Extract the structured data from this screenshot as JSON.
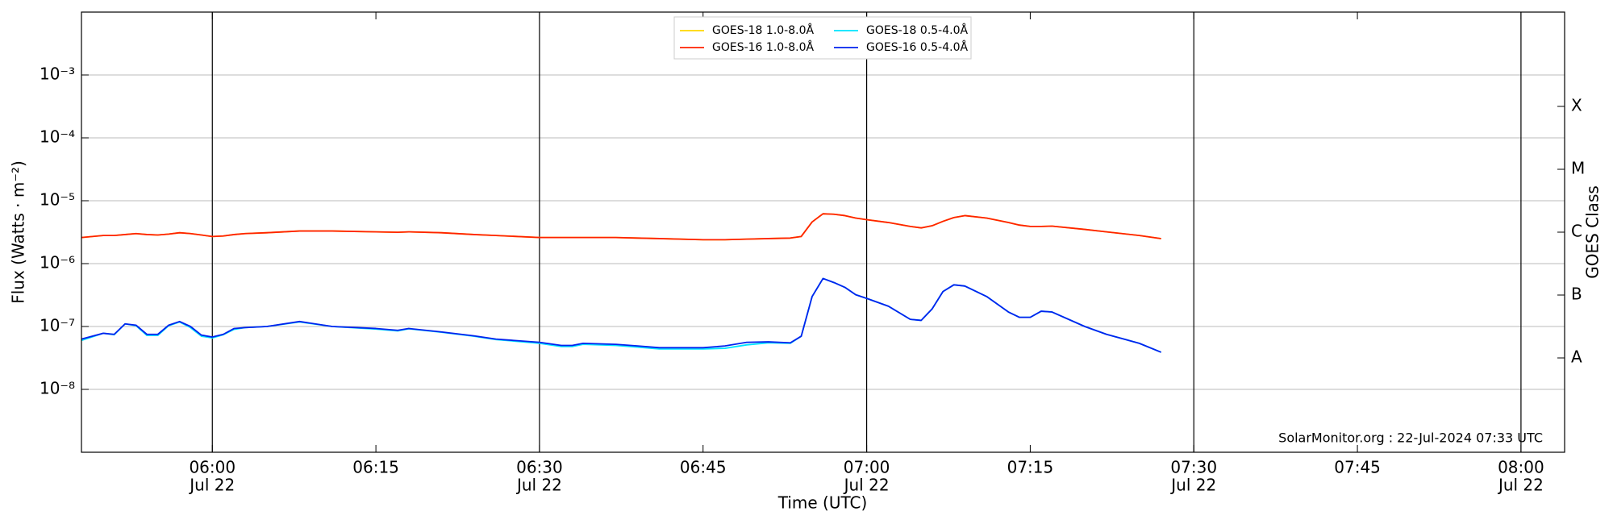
{
  "chart_data": {
    "type": "line",
    "xlabel": "Time (UTC)",
    "ylabel": "Flux (Watts · m⁻²)",
    "y2label": "GOES Class",
    "annotation": "SolarMonitor.org : 22-Jul-2024 07:33 UTC",
    "log_y": true,
    "grid": true,
    "legend": "top-center",
    "xlim": [
      "05:48",
      "08:04"
    ],
    "xticks": [
      "06:00",
      "06:15",
      "06:30",
      "06:45",
      "07:00",
      "07:15",
      "07:30",
      "07:45",
      "08:00"
    ],
    "xtick_dates": [
      "Jul 22",
      null,
      "Jul 22",
      null,
      "Jul 22",
      null,
      "Jul 22",
      null,
      "Jul 22"
    ],
    "ylim": [
      1e-09,
      0.01
    ],
    "yticks": [
      {
        "value": 1e-08,
        "label": "10⁻⁸"
      },
      {
        "value": 1e-07,
        "label": "10⁻⁷"
      },
      {
        "value": 1e-06,
        "label": "10⁻⁶"
      },
      {
        "value": 1e-05,
        "label": "10⁻⁵"
      },
      {
        "value": 0.0001,
        "label": "10⁻⁴"
      },
      {
        "value": 0.001,
        "label": "10⁻³"
      }
    ],
    "y2lim": [
      1e-09,
      0.01
    ],
    "y2ticks": [
      {
        "value": 3.162e-08,
        "label": "A"
      },
      {
        "value": 3.162e-07,
        "label": "B"
      },
      {
        "value": 3.162e-06,
        "label": "C"
      },
      {
        "value": 3.162e-05,
        "label": "M"
      },
      {
        "value": 0.0003162,
        "label": "X"
      }
    ],
    "x": [
      "05:48",
      "05:50",
      "05:51",
      "05:52",
      "05:53",
      "05:54",
      "05:55",
      "05:56",
      "05:57",
      "05:58",
      "05:59",
      "06:00",
      "06:01",
      "06:02",
      "06:03",
      "06:05",
      "06:08",
      "06:11",
      "06:15",
      "06:17",
      "06:18",
      "06:21",
      "06:24",
      "06:26",
      "06:30",
      "06:32",
      "06:33",
      "06:34",
      "06:37",
      "06:39",
      "06:41",
      "06:45",
      "06:47",
      "06:49",
      "06:51",
      "06:53",
      "06:54",
      "06:55",
      "06:56",
      "06:57",
      "06:58",
      "06:59",
      "07:00",
      "07:02",
      "07:04",
      "07:05",
      "07:06",
      "07:07",
      "07:08",
      "07:09",
      "07:11",
      "07:13",
      "07:14",
      "07:15",
      "07:16",
      "07:17",
      "07:20",
      "07:22",
      "07:25",
      "07:27"
    ],
    "series": [
      {
        "name": "GOES-18 1.0-8.0Å",
        "color": "#ffd700",
        "values": [
          2.6e-06,
          2.8e-06,
          2.8e-06,
          2.9e-06,
          3e-06,
          2.9e-06,
          2.85e-06,
          2.95e-06,
          3.1e-06,
          3e-06,
          2.85e-06,
          2.7e-06,
          2.75e-06,
          2.9e-06,
          3e-06,
          3.1e-06,
          3.3e-06,
          3.3e-06,
          3.2e-06,
          3.15e-06,
          3.2e-06,
          3.1e-06,
          2.9e-06,
          2.8e-06,
          2.6e-06,
          2.6e-06,
          2.6e-06,
          2.6e-06,
          2.6e-06,
          2.55e-06,
          2.5e-06,
          2.4e-06,
          2.4e-06,
          2.45e-06,
          2.5e-06,
          2.55e-06,
          2.7e-06,
          4.6e-06,
          6.2e-06,
          6.1e-06,
          5.8e-06,
          5.3e-06,
          5e-06,
          4.5e-06,
          3.9e-06,
          3.7e-06,
          4e-06,
          4.7e-06,
          5.4e-06,
          5.8e-06,
          5.3e-06,
          4.5e-06,
          4.1e-06,
          3.9e-06,
          3.9e-06,
          3.95e-06,
          3.5e-06,
          3.2e-06,
          2.8e-06,
          2.5e-06
        ]
      },
      {
        "name": "GOES-16 1.0-8.0Å",
        "color": "#ff2200",
        "values": [
          2.6e-06,
          2.8e-06,
          2.8e-06,
          2.9e-06,
          3e-06,
          2.9e-06,
          2.85e-06,
          2.95e-06,
          3.1e-06,
          3e-06,
          2.85e-06,
          2.7e-06,
          2.75e-06,
          2.9e-06,
          3e-06,
          3.1e-06,
          3.3e-06,
          3.3e-06,
          3.2e-06,
          3.15e-06,
          3.2e-06,
          3.1e-06,
          2.9e-06,
          2.8e-06,
          2.6e-06,
          2.6e-06,
          2.6e-06,
          2.6e-06,
          2.6e-06,
          2.55e-06,
          2.5e-06,
          2.4e-06,
          2.4e-06,
          2.45e-06,
          2.5e-06,
          2.55e-06,
          2.7e-06,
          4.6e-06,
          6.2e-06,
          6.1e-06,
          5.8e-06,
          5.3e-06,
          5e-06,
          4.5e-06,
          3.9e-06,
          3.7e-06,
          4e-06,
          4.7e-06,
          5.4e-06,
          5.8e-06,
          5.3e-06,
          4.5e-06,
          4.1e-06,
          3.9e-06,
          3.9e-06,
          3.95e-06,
          3.5e-06,
          3.2e-06,
          2.8e-06,
          2.5e-06
        ]
      },
      {
        "name": "GOES-18 0.5-4.0Å",
        "color": "#00e5ff",
        "values": [
          6e-08,
          7.8e-08,
          7.4e-08,
          1.1e-07,
          1.03e-07,
          7.2e-08,
          7.2e-08,
          1.03e-07,
          1.18e-07,
          9.6e-08,
          7e-08,
          6.6e-08,
          7.4e-08,
          9e-08,
          9.6e-08,
          1e-07,
          1.18e-07,
          1e-07,
          9.1e-08,
          8.5e-08,
          9.2e-08,
          8.1e-08,
          7e-08,
          6.2e-08,
          5.4e-08,
          4.8e-08,
          4.8e-08,
          5.2e-08,
          5e-08,
          4.7e-08,
          4.4e-08,
          4.4e-08,
          4.5e-08,
          5.1e-08,
          5.5e-08,
          5.4e-08,
          7e-08,
          3e-07,
          5.8e-07,
          5e-07,
          4.2e-07,
          3.2e-07,
          2.8e-07,
          2.1e-07,
          1.3e-07,
          1.25e-07,
          1.9e-07,
          3.6e-07,
          4.6e-07,
          4.4e-07,
          3e-07,
          1.7e-07,
          1.4e-07,
          1.4e-07,
          1.75e-07,
          1.7e-07,
          1e-07,
          7.5e-08,
          5.4e-08,
          3.9e-08
        ]
      },
      {
        "name": "GOES-16 0.5-4.0Å",
        "color": "#0022ee",
        "values": [
          6.3e-08,
          7.8e-08,
          7.5e-08,
          1.1e-07,
          1.05e-07,
          7.5e-08,
          7.5e-08,
          1.05e-07,
          1.2e-07,
          1e-07,
          7.3e-08,
          6.8e-08,
          7.5e-08,
          9.3e-08,
          9.6e-08,
          1e-07,
          1.2e-07,
          1e-07,
          9.3e-08,
          8.7e-08,
          9.3e-08,
          8.2e-08,
          7.1e-08,
          6.3e-08,
          5.6e-08,
          5e-08,
          5e-08,
          5.4e-08,
          5.2e-08,
          4.9e-08,
          4.6e-08,
          4.6e-08,
          4.9e-08,
          5.6e-08,
          5.7e-08,
          5.5e-08,
          7e-08,
          3e-07,
          5.8e-07,
          5e-07,
          4.2e-07,
          3.2e-07,
          2.8e-07,
          2.1e-07,
          1.3e-07,
          1.25e-07,
          1.9e-07,
          3.6e-07,
          4.6e-07,
          4.4e-07,
          3e-07,
          1.7e-07,
          1.4e-07,
          1.4e-07,
          1.75e-07,
          1.7e-07,
          1e-07,
          7.5e-08,
          5.4e-08,
          3.9e-08
        ]
      }
    ]
  }
}
